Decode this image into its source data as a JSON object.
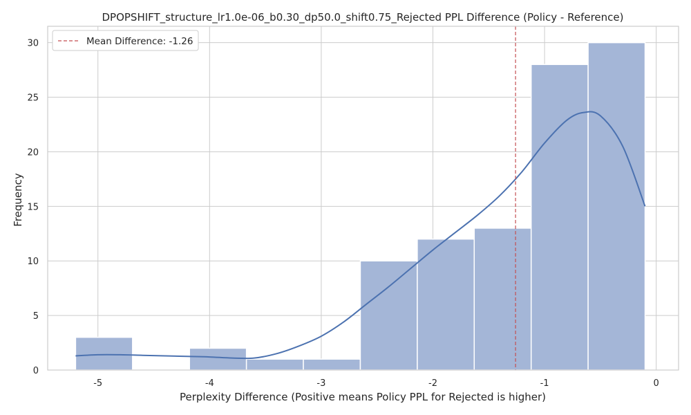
{
  "chart_data": {
    "type": "bar",
    "title": "DPOPSHIFT_structure_lr1.0e-06_b0.30_dp50.0_shift0.75_Rejected PPL Difference (Policy - Reference)",
    "xlabel": "Perplexity Difference (Positive means Policy PPL for Rejected is higher)",
    "ylabel": "Frequency",
    "xlim": [
      -5.45,
      0.2
    ],
    "ylim": [
      0,
      31.5
    ],
    "xticks": [
      -5,
      -4,
      -3,
      -2,
      -1,
      0
    ],
    "xtick_labels": [
      "-5",
      "-4",
      "-3",
      "-2",
      "-1",
      "0"
    ],
    "yticks": [
      0,
      5,
      10,
      15,
      20,
      25,
      30
    ],
    "ytick_labels": [
      "0",
      "5",
      "10",
      "15",
      "20",
      "25",
      "30"
    ],
    "grid": true,
    "bins": [
      {
        "x0": -5.2,
        "x1": -4.69,
        "count": 3
      },
      {
        "x0": -4.69,
        "x1": -4.18,
        "count": 0
      },
      {
        "x0": -4.18,
        "x1": -3.67,
        "count": 2
      },
      {
        "x0": -3.67,
        "x1": -3.16,
        "count": 1
      },
      {
        "x0": -3.16,
        "x1": -2.65,
        "count": 1
      },
      {
        "x0": -2.65,
        "x1": -2.14,
        "count": 10
      },
      {
        "x0": -2.14,
        "x1": -1.63,
        "count": 12
      },
      {
        "x0": -1.63,
        "x1": -1.12,
        "count": 13
      },
      {
        "x0": -1.12,
        "x1": -0.61,
        "count": 28
      },
      {
        "x0": -0.61,
        "x1": -0.1,
        "count": 30
      }
    ],
    "kde": {
      "x": [
        -5.2,
        -5.0,
        -4.8,
        -4.6,
        -4.4,
        -4.2,
        -4.0,
        -3.8,
        -3.6,
        -3.4,
        -3.2,
        -3.0,
        -2.8,
        -2.6,
        -2.4,
        -2.2,
        -2.0,
        -1.8,
        -1.6,
        -1.4,
        -1.2,
        -1.0,
        -0.8,
        -0.65,
        -0.5,
        -0.3,
        -0.1
      ],
      "y": [
        1.3,
        1.4,
        1.4,
        1.35,
        1.3,
        1.25,
        1.2,
        1.1,
        1.1,
        1.5,
        2.2,
        3.1,
        4.4,
        6.0,
        7.6,
        9.3,
        11.0,
        12.6,
        14.2,
        16.0,
        18.2,
        20.8,
        22.9,
        23.6,
        23.3,
        20.5,
        15.0
      ]
    },
    "mean_line": {
      "x": -1.26,
      "label": "Mean Difference: -1.26"
    },
    "legend_position": "upper-left",
    "colors": {
      "bar": "#a4b6d7",
      "bar_edge": "#ffffff",
      "kde": "#4c72b0",
      "mean": "#c44e52",
      "grid": "#cccccc",
      "spine": "#cccccc"
    }
  }
}
